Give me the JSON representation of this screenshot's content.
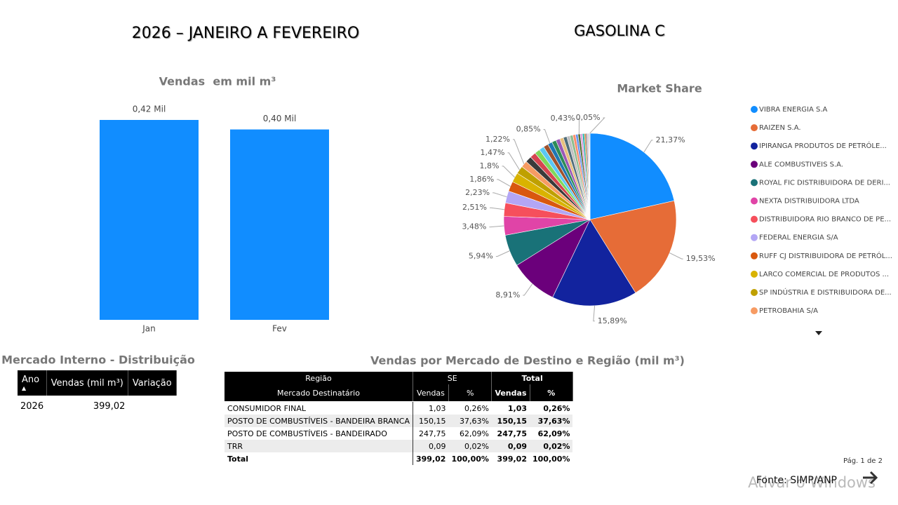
{
  "header": {
    "period": "2026 – JANEIRO A FEVEREIRO",
    "product": "GASOLINA C"
  },
  "chart_data": [
    {
      "type": "bar",
      "title": "Vendas  em mil m³",
      "categories": [
        "Jan",
        "Fev"
      ],
      "values": [
        0.42,
        0.4
      ],
      "value_labels": [
        "0,42 Mil",
        "0,40 Mil"
      ],
      "color": "#118DFF"
    },
    {
      "type": "pie",
      "title": "Market Share",
      "categories": [
        "VIBRA ENERGIA S.A",
        "RAIZEN S.A.",
        "IPIRANGA PRODUTOS DE PETRÓLE...",
        "ALE COMBUSTIVEIS S.A.",
        "ROYAL FIC DISTRIBUIDORA DE DERI...",
        "NEXTA DISTRIBUIDORA LTDA",
        "DISTRIBUIDORA RIO BRANCO DE PE...",
        "FEDERAL ENERGIA S/A",
        "RUFF CJ DISTRIBUIDORA DE PETRÓL...",
        "LARCO COMERCIAL DE PRODUTOS ...",
        "SP INDÚSTRIA E DISTRIBUIDORA DE...",
        "PETROBAHIA S/A",
        null,
        null,
        null,
        null,
        null,
        null,
        null,
        null,
        null,
        null,
        null,
        null,
        null,
        null,
        null,
        null,
        null,
        null,
        null,
        null,
        null,
        null,
        null
      ],
      "values": [
        21.37,
        19.53,
        15.89,
        8.91,
        5.94,
        3.48,
        2.51,
        2.23,
        1.86,
        1.8,
        1.47,
        1.22,
        1.15,
        1.1,
        1.0,
        0.95,
        0.9,
        0.85,
        0.8,
        0.75,
        0.7,
        0.65,
        0.6,
        0.55,
        0.5,
        0.45,
        0.43,
        0.4,
        0.35,
        0.3,
        0.25,
        0.2,
        0.15,
        0.1,
        0.05
      ],
      "value_labels": [
        "21,37%",
        "19,53%",
        "15,89%",
        "8,91%",
        "5,94%",
        "3,48%",
        "2,51%",
        "2,23%",
        "1,86%",
        "1,8%",
        "1,47%",
        "1,22%",
        null,
        null,
        null,
        null,
        null,
        "0,85%",
        null,
        null,
        null,
        null,
        null,
        null,
        null,
        null,
        "0,43%",
        null,
        null,
        null,
        null,
        null,
        null,
        null,
        "0,05%"
      ],
      "colors": [
        "#118DFF",
        "#E66C37",
        "#12239E",
        "#6B007B",
        "#197278",
        "#E044A7",
        "#F64F5C",
        "#B3A6F5",
        "#D9580E",
        "#D9B300",
        "#BFA000",
        "#F79B63",
        "#3A3A3A",
        "#D64550",
        "#7FD85C",
        "#5AC8F5",
        "#A0522D",
        "#1F77B4",
        "#2E8B57",
        "#9B59B6",
        "#E8C07D",
        "#4F6D7A",
        "#C0C0C0",
        "#8FBC8F",
        "#FF8C69",
        "#6495ED",
        "#556B2F",
        "#DDA0DD",
        "#20B2AA",
        "#CD853F",
        "#708090",
        "#FFB6C1",
        "#4682B4",
        "#9ACD32",
        "#8B4513"
      ],
      "legend": "right"
    }
  ],
  "table_destino_title": "Vendas por Mercado de Destino e Região (mil m³)",
  "table_interno": {
    "title": "Mercado Interno - Distribuição",
    "columns": [
      "Ano",
      "Vendas (mil m³)",
      "Variação"
    ],
    "rows": [
      [
        "2026",
        "399,02"
      ]
    ]
  },
  "table_destino": {
    "header": [
      "Região",
      "SE",
      "Total"
    ],
    "subheader": [
      "Mercado Destinatário",
      "Vendas",
      "%",
      "Vendas",
      "%"
    ],
    "rows": [
      [
        "CONSUMIDOR FINAL",
        "1,03",
        "0,26%",
        "1,03",
        "0,26%"
      ],
      [
        "POSTO DE COMBUSTÍVEIS - BANDEIRA BRANCA",
        "150,15",
        "37,63%",
        "150,15",
        "37,63%"
      ],
      [
        "POSTO DE COMBUSTÍVEIS - BANDEIRADO",
        "247,75",
        "62,09%",
        "247,75",
        "62,09%"
      ],
      [
        "TRR",
        "0,09",
        "0,02%",
        "0,09",
        "0,02%"
      ]
    ],
    "total": [
      "Total",
      "399,02",
      "100,00%",
      "399,02",
      "100,00%"
    ]
  },
  "footer": {
    "page": "Pág. 1 de 2",
    "source": "Fonte: SIMP/ANP",
    "watermark": "Ativar o Windows"
  }
}
